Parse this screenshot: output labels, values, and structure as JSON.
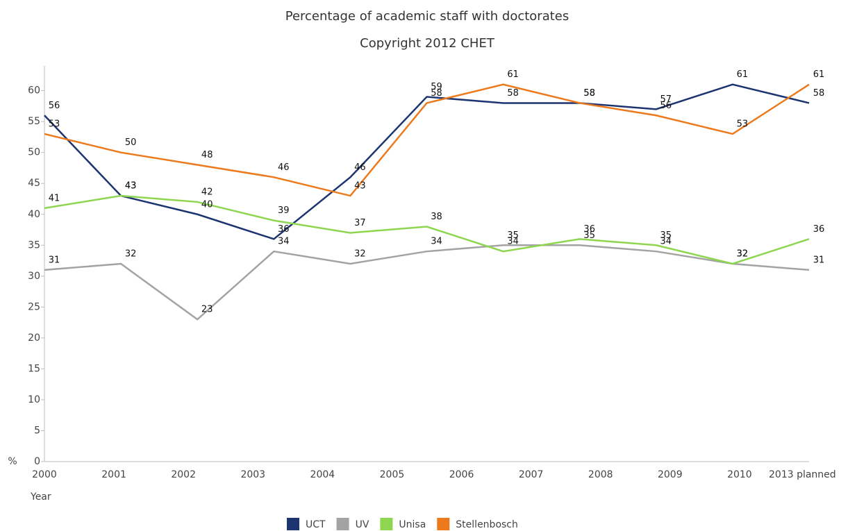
{
  "chart_data": {
    "type": "line",
    "title": "Percentage of academic staff with doctorates",
    "subtitle": "Copyright 2012 CHET",
    "y_label": "%",
    "x_label": "Year",
    "x_labels": [
      "2000",
      "2001",
      "2002",
      "2003",
      "2004",
      "2005",
      "2006",
      "2007",
      "2008",
      "2009",
      "2010",
      "2013 planned"
    ],
    "series": [
      {
        "name": "UCT",
        "color": "#1c3570",
        "values": [
          56,
          43,
          40,
          36,
          46,
          59,
          58,
          58,
          57,
          61,
          58
        ]
      },
      {
        "name": "UV",
        "color": "#a3a3a3",
        "values": [
          31,
          32,
          23,
          34,
          32,
          34,
          35,
          35,
          34,
          32,
          31
        ]
      },
      {
        "name": "Unisa",
        "color": "#8ed64f",
        "values": [
          41,
          43,
          42,
          39,
          37,
          38,
          34,
          36,
          35,
          32,
          36
        ]
      },
      {
        "name": "Stellenbosch",
        "color": "#ec7a1c",
        "values": [
          53,
          50,
          48,
          46,
          43,
          58,
          61,
          58,
          56,
          53,
          61
        ]
      }
    ],
    "ylim": [
      0,
      64
    ],
    "yticks": [
      0,
      5,
      10,
      15,
      20,
      25,
      30,
      35,
      40,
      45,
      50,
      55,
      60
    ]
  }
}
